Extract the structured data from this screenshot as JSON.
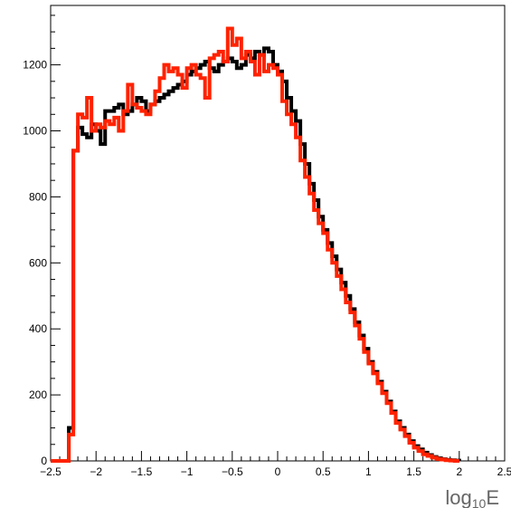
{
  "chart_data": {
    "type": "line",
    "title": "",
    "xlabel": "log10E",
    "xlabel_base": "log",
    "xlabel_sub": "10",
    "xlabel_tail": "E",
    "ylabel": "",
    "xlim": [
      -2.5,
      2.5
    ],
    "ylim": [
      0,
      1380
    ],
    "x_ticks": [
      -2.5,
      -2,
      -1.5,
      -1,
      -0.5,
      0,
      0.5,
      1,
      1.5,
      2,
      2.5
    ],
    "x_tick_labels": [
      "-2.5",
      "-2",
      "-1.5",
      "-1",
      "-0.5",
      "0",
      "0.5",
      "1",
      "1.5",
      "2",
      "2.5"
    ],
    "y_ticks": [
      0,
      200,
      400,
      600,
      800,
      1000,
      1200
    ],
    "y_tick_labels": [
      "0",
      "200",
      "400",
      "600",
      "800",
      "1000",
      "1200"
    ],
    "grid": false,
    "legend": "none",
    "bin_edges_start": -2.5,
    "bin_width": 0.05,
    "series": [
      {
        "color": "#000000",
        "values": [
          0,
          0,
          0,
          0,
          100,
          940,
          1010,
          990,
          980,
          1020,
          1000,
          960,
          1060,
          1060,
          1070,
          1080,
          1050,
          1060,
          1080,
          1100,
          1090,
          1060,
          1080,
          1090,
          1100,
          1110,
          1120,
          1130,
          1140,
          1150,
          1170,
          1180,
          1190,
          1200,
          1210,
          1190,
          1180,
          1200,
          1210,
          1220,
          1210,
          1190,
          1200,
          1230,
          1220,
          1240,
          1230,
          1250,
          1240,
          1200,
          1180,
          1150,
          1100,
          1060,
          1030,
          960,
          900,
          840,
          790,
          740,
          700,
          660,
          620,
          580,
          540,
          500,
          460,
          420,
          380,
          340,
          300,
          270,
          240,
          210,
          180,
          150,
          120,
          100,
          80,
          60,
          45,
          35,
          25,
          18,
          12,
          8,
          5,
          3,
          2,
          1
        ]
      },
      {
        "color": "#ff2200",
        "values": [
          0,
          0,
          0,
          0,
          80,
          940,
          1050,
          1040,
          1100,
          1000,
          1020,
          1010,
          1030,
          1020,
          1040,
          1000,
          1060,
          1140,
          1080,
          1070,
          1060,
          1050,
          1080,
          1120,
          1160,
          1200,
          1180,
          1190,
          1170,
          1130,
          1190,
          1200,
          1170,
          1160,
          1100,
          1220,
          1230,
          1240,
          1210,
          1310,
          1260,
          1280,
          1220,
          1240,
          1210,
          1170,
          1230,
          1180,
          1200,
          1190,
          1170,
          1090,
          1050,
          1020,
          980,
          910,
          860,
          810,
          760,
          720,
          690,
          640,
          600,
          560,
          520,
          480,
          450,
          410,
          370,
          330,
          295,
          265,
          235,
          205,
          175,
          145,
          115,
          95,
          75,
          55,
          40,
          30,
          20,
          15,
          10,
          6,
          4,
          2,
          1,
          0
        ]
      }
    ]
  }
}
